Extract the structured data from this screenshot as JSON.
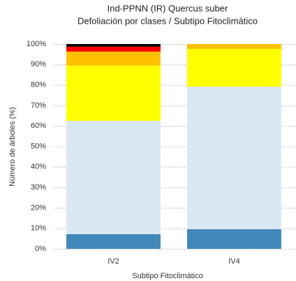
{
  "chart_data": {
    "type": "stacked_bar",
    "title": "Ind-PPNN (IR) Quercus suber",
    "subtitle": "Defoliación por clases / Subtipo Fitoclimático",
    "x_label": "Subtipo Fitoclimático",
    "y_label": "Número de árboles (%)",
    "categories": [
      "IV2",
      "IV4"
    ],
    "series": [
      {
        "color": "#4189b9",
        "values": [
          7.2,
          9.6
        ]
      },
      {
        "color": "#d9e8f2",
        "values": [
          55.3,
          69.6
        ]
      },
      {
        "color": "#ffff00",
        "values": [
          27,
          18.4
        ]
      },
      {
        "color": "#ffc000",
        "values": [
          6.8,
          2.4
        ]
      },
      {
        "color": "#ff0000",
        "values": [
          2.4,
          0
        ]
      },
      {
        "color": "#000000",
        "values": [
          1.3,
          0
        ]
      }
    ],
    "ylim": [
      0,
      100
    ],
    "yticks": [
      {
        "value": 0,
        "label": "0%"
      },
      {
        "value": 10,
        "label": "10%"
      },
      {
        "value": 20,
        "label": "20%"
      },
      {
        "value": 30,
        "label": "30%"
      },
      {
        "value": 40,
        "label": "40%"
      },
      {
        "value": 50,
        "label": "50%"
      },
      {
        "value": 60,
        "label": "60%"
      },
      {
        "value": 70,
        "label": "70%"
      },
      {
        "value": 80,
        "label": "80%"
      },
      {
        "value": 90,
        "label": "90%"
      },
      {
        "value": 100,
        "label": "100%"
      }
    ],
    "grid": true
  }
}
